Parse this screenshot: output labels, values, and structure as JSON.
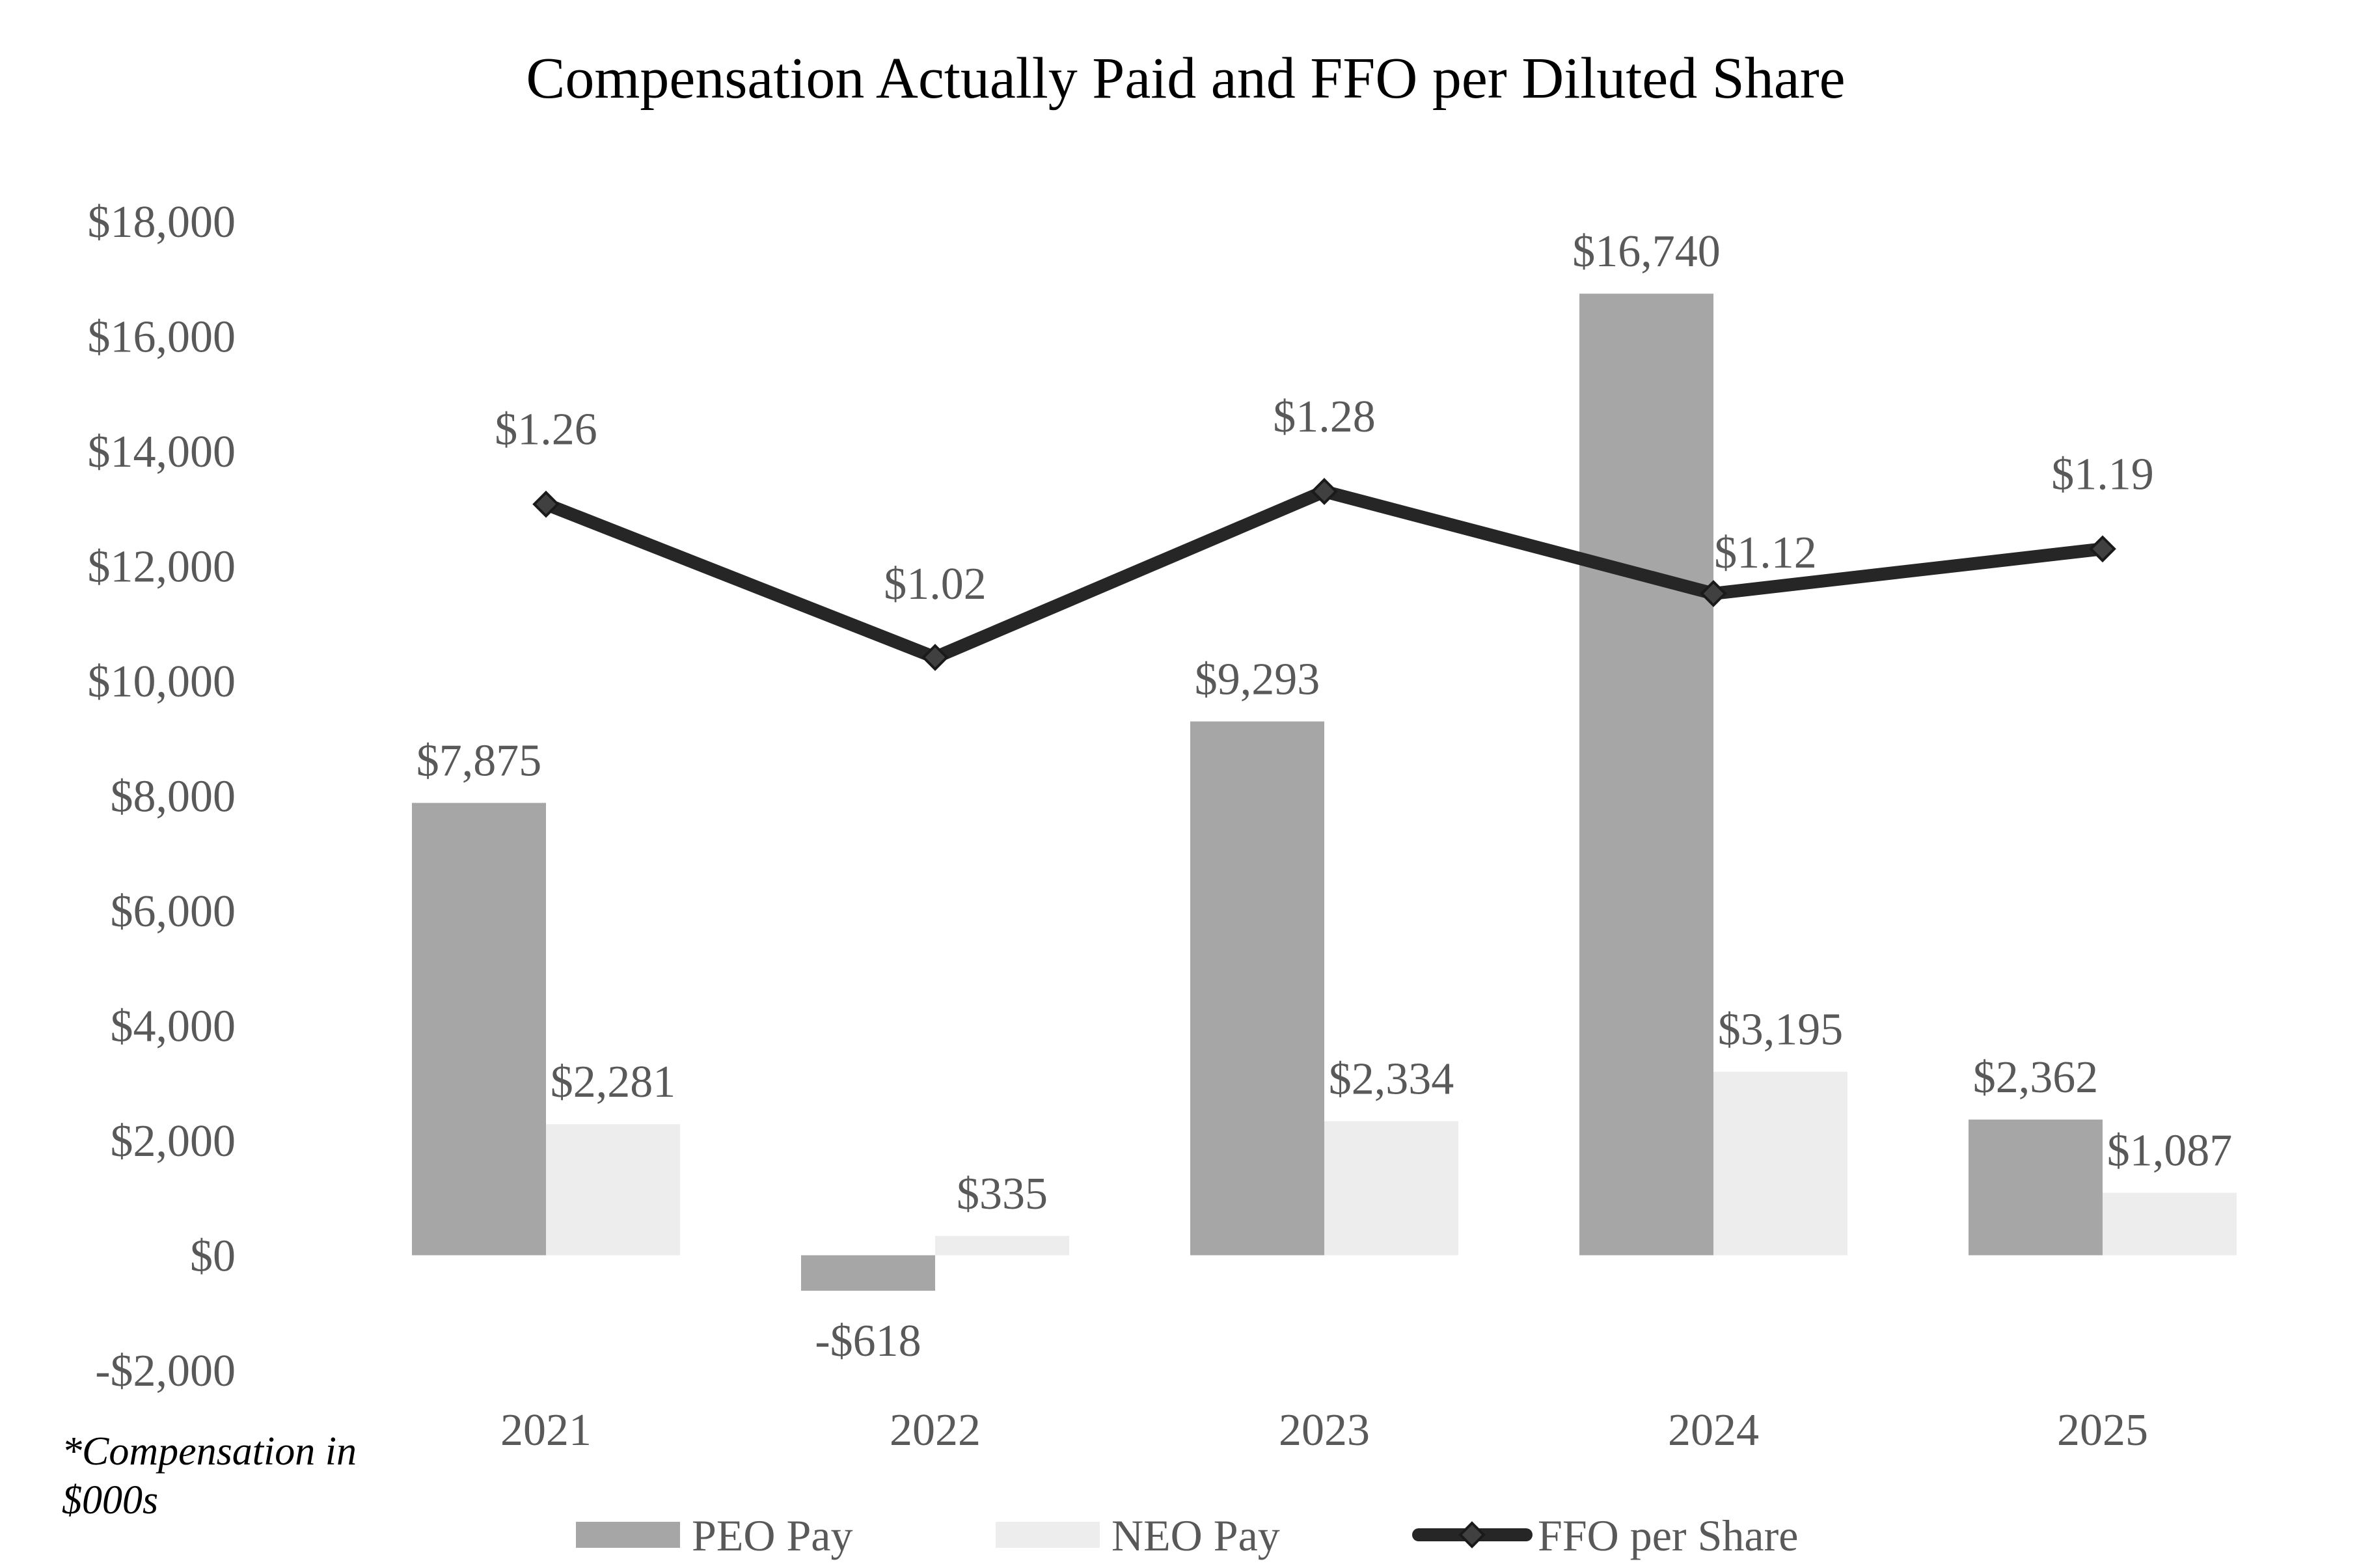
{
  "chart_data": {
    "type": "bar",
    "title": "Compensation Actually Paid and FFO per Diluted Share",
    "xlabel": "",
    "ylabel": "",
    "categories": [
      "2021",
      "2022",
      "2023",
      "2024",
      "2025"
    ],
    "ylim": [
      -2000,
      18000
    ],
    "y_ticks": [
      -2000,
      0,
      2000,
      4000,
      6000,
      8000,
      10000,
      12000,
      14000,
      16000,
      18000
    ],
    "y_tick_labels": [
      "-$2,000",
      "$0",
      "$2,000",
      "$4,000",
      "$6,000",
      "$8,000",
      "$10,000",
      "$12,000",
      "$14,000",
      "$16,000",
      "$18,000"
    ],
    "grid": false,
    "legend_position": "bottom",
    "series": [
      {
        "name": "PEO Pay",
        "type": "bar",
        "color": "#a6a6a6",
        "values": [
          7875,
          -618,
          9293,
          16740,
          2362
        ],
        "labels": [
          "$7,875",
          "-$618",
          "$9,293",
          "$16,740",
          "$2,362"
        ]
      },
      {
        "name": "NEO Pay",
        "type": "bar",
        "color": "#ededed",
        "values": [
          2281,
          335,
          2334,
          3195,
          1087
        ],
        "labels": [
          "$2,281",
          "$335",
          "$2,334",
          "$3,195",
          "$1,087"
        ]
      },
      {
        "name": "FFO per Share",
        "type": "line",
        "marker": "diamond",
        "color": "#262626",
        "values": [
          1.26,
          1.02,
          1.28,
          1.12,
          1.19
        ],
        "labels": [
          "$1.26",
          "$1.02",
          "$1.28",
          "$1.12",
          "$1.19"
        ]
      }
    ],
    "annotation_lines": [
      "*Compensation in",
      "$000s"
    ]
  }
}
